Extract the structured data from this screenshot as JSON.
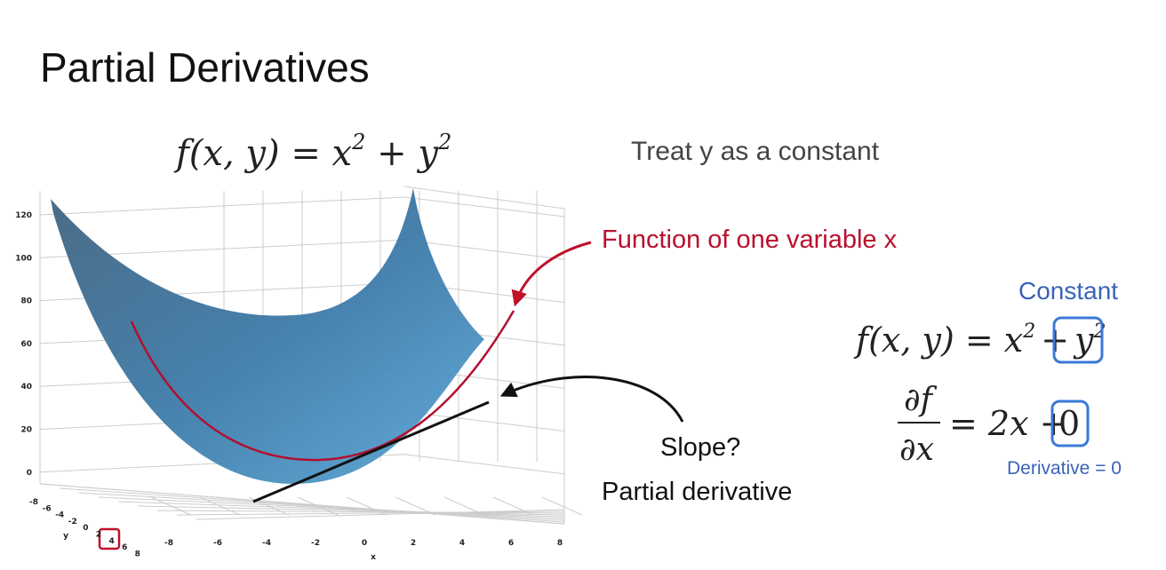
{
  "header": {
    "title": "Partial Derivatives"
  },
  "plot": {
    "formula": {
      "lhs": "f(x, y) = x",
      "exp1": "2",
      "mid": " + y",
      "exp2": "2"
    },
    "z_ticks": [
      "120",
      "100",
      "80",
      "60",
      "40",
      "20",
      "0"
    ],
    "x_ticks": [
      "-8",
      "-6",
      "-4",
      "-2",
      "0",
      "2",
      "4",
      "6",
      "8"
    ],
    "y_ticks": [
      "-8",
      "-6",
      "-4",
      "-2",
      "0",
      "2",
      "4",
      "6",
      "8"
    ],
    "x_label": "x",
    "y_label": "y"
  },
  "notes": {
    "treat": "Treat y as a constant",
    "function_label": "Function of one variable x",
    "slope": "Slope?",
    "partial": "Partial derivative"
  },
  "right": {
    "constant": "Constant",
    "formula": {
      "lhs": "f(x, y) = x",
      "exp1": "2",
      "plus": "+",
      "y": "y",
      "exp2": "2"
    },
    "derivative": {
      "num": "∂f",
      "den": "∂x",
      "rhs": "= 2x +",
      "zero": "0"
    },
    "derivative_note": "Derivative = 0"
  }
}
